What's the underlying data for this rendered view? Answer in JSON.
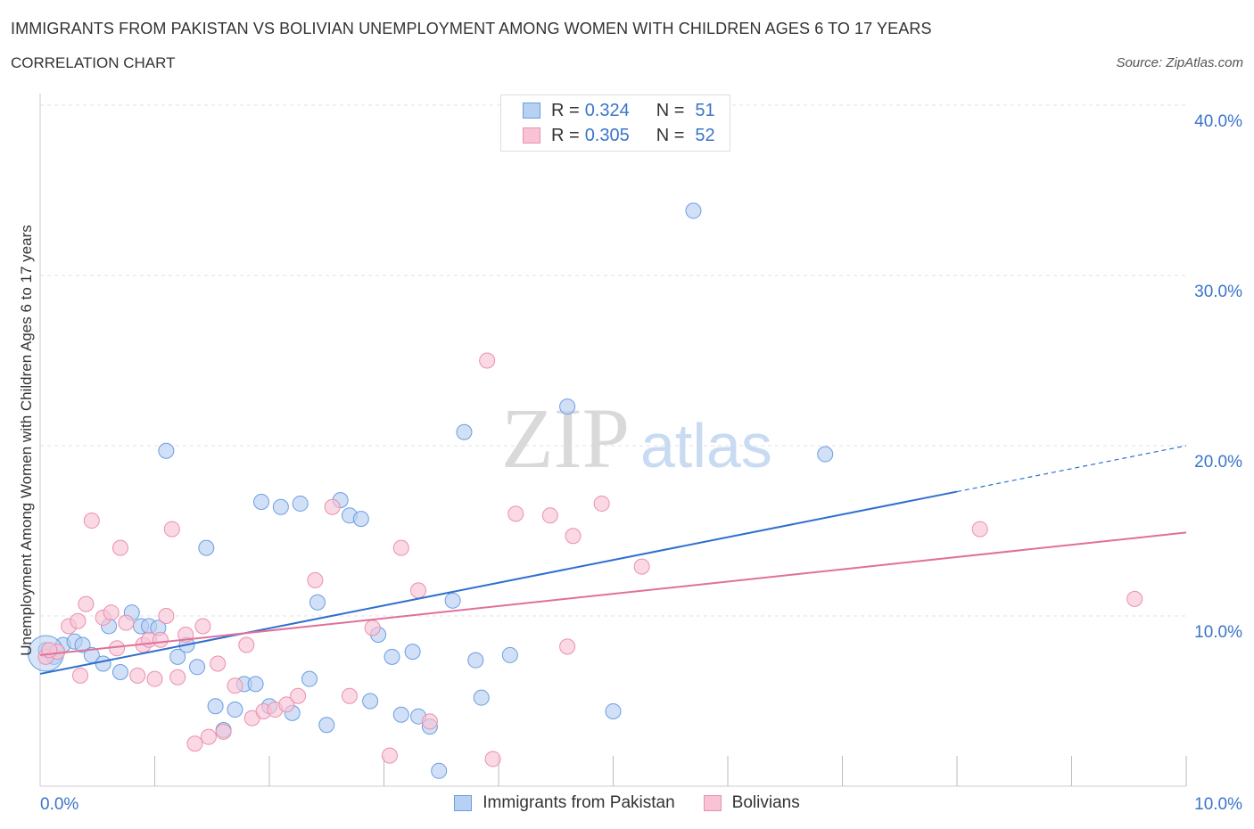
{
  "header": {
    "title": "IMMIGRANTS FROM PAKISTAN VS BOLIVIAN UNEMPLOYMENT AMONG WOMEN WITH CHILDREN AGES 6 TO 17 YEARS",
    "subtitle": "CORRELATION CHART",
    "source": "Source: ZipAtlas.com"
  },
  "watermark": {
    "zip": "ZIP",
    "atlas": "atlas"
  },
  "legend": {
    "r_label": "R =",
    "n_label": "N =",
    "series": [
      {
        "name": "Immigrants from Pakistan",
        "r": "0.324",
        "n": "51",
        "color": "#a9c7ef",
        "stroke": "#6a9ee0"
      },
      {
        "name": "Bolivians",
        "r": "0.305",
        "n": "52",
        "color": "#f7bcd0",
        "stroke": "#ec8fad"
      }
    ]
  },
  "colors": {
    "blue_fill": "#b8d0f2",
    "blue_line": "#2f6fce",
    "pink_fill": "#f8c4d5",
    "pink_line": "#e0709a",
    "axis_text": "#3b74c9",
    "grid": "#e2e2e2"
  },
  "chart_data": {
    "type": "scatter",
    "title": "IMMIGRANTS FROM PAKISTAN VS BOLIVIAN UNEMPLOYMENT AMONG WOMEN WITH CHILDREN AGES 6 TO 17 YEARS",
    "xlabel": "",
    "ylabel": "Unemployment Among Women with Children Ages 6 to 17 years",
    "xlim": [
      0,
      10
    ],
    "ylim": [
      0,
      40
    ],
    "x_tick_labels": [
      "0.0%",
      "10.0%"
    ],
    "y_tick_labels": [
      "10.0%",
      "20.0%",
      "30.0%",
      "40.0%"
    ],
    "y_ticks": [
      10,
      20,
      30,
      40
    ],
    "series": [
      {
        "name": "Immigrants from Pakistan",
        "r": 0.324,
        "n": 51,
        "points": [
          [
            0.05,
            8.0
          ],
          [
            0.2,
            8.3
          ],
          [
            0.3,
            8.5
          ],
          [
            0.37,
            8.3
          ],
          [
            0.45,
            7.7
          ],
          [
            0.55,
            7.2
          ],
          [
            0.6,
            9.4
          ],
          [
            0.7,
            6.7
          ],
          [
            0.8,
            10.2
          ],
          [
            0.88,
            9.4
          ],
          [
            0.95,
            9.4
          ],
          [
            1.03,
            9.3
          ],
          [
            1.1,
            19.7
          ],
          [
            1.2,
            7.6
          ],
          [
            1.28,
            8.3
          ],
          [
            1.37,
            7.0
          ],
          [
            1.45,
            14.0
          ],
          [
            1.53,
            4.7
          ],
          [
            1.6,
            3.3
          ],
          [
            1.7,
            4.5
          ],
          [
            1.78,
            6.0
          ],
          [
            1.88,
            6.0
          ],
          [
            1.93,
            16.7
          ],
          [
            2.0,
            4.7
          ],
          [
            2.1,
            16.4
          ],
          [
            2.2,
            4.3
          ],
          [
            2.27,
            16.6
          ],
          [
            2.35,
            6.3
          ],
          [
            2.42,
            10.8
          ],
          [
            2.5,
            3.6
          ],
          [
            2.62,
            16.8
          ],
          [
            2.7,
            15.9
          ],
          [
            2.8,
            15.7
          ],
          [
            2.88,
            5.0
          ],
          [
            2.95,
            8.9
          ],
          [
            3.07,
            7.6
          ],
          [
            3.15,
            4.2
          ],
          [
            3.25,
            7.9
          ],
          [
            3.3,
            4.1
          ],
          [
            3.4,
            3.5
          ],
          [
            3.48,
            0.9
          ],
          [
            3.6,
            10.9
          ],
          [
            3.7,
            20.8
          ],
          [
            3.8,
            7.4
          ],
          [
            3.85,
            5.2
          ],
          [
            4.1,
            7.7
          ],
          [
            4.6,
            22.3
          ],
          [
            5.0,
            4.4
          ],
          [
            5.7,
            33.8
          ],
          [
            6.85,
            19.5
          ],
          [
            0.12,
            7.6
          ]
        ],
        "trend": {
          "x": [
            0.0,
            8.0
          ],
          "y": [
            6.6,
            17.3
          ],
          "dashed_to": [
            10.0,
            20.0
          ]
        }
      },
      {
        "name": "Bolivians",
        "r": 0.305,
        "n": 52,
        "points": [
          [
            0.05,
            7.6
          ],
          [
            0.15,
            7.9
          ],
          [
            0.25,
            9.4
          ],
          [
            0.33,
            9.7
          ],
          [
            0.35,
            6.5
          ],
          [
            0.4,
            10.7
          ],
          [
            0.45,
            15.6
          ],
          [
            0.55,
            9.9
          ],
          [
            0.62,
            10.2
          ],
          [
            0.67,
            8.1
          ],
          [
            0.7,
            14.0
          ],
          [
            0.75,
            9.6
          ],
          [
            0.85,
            6.5
          ],
          [
            0.9,
            8.3
          ],
          [
            0.95,
            8.6
          ],
          [
            1.0,
            6.3
          ],
          [
            1.05,
            8.6
          ],
          [
            1.1,
            10.0
          ],
          [
            1.15,
            15.1
          ],
          [
            1.2,
            6.4
          ],
          [
            1.27,
            8.9
          ],
          [
            1.35,
            2.5
          ],
          [
            1.42,
            9.4
          ],
          [
            1.47,
            2.9
          ],
          [
            1.55,
            7.2
          ],
          [
            1.6,
            3.2
          ],
          [
            1.7,
            5.9
          ],
          [
            1.8,
            8.3
          ],
          [
            1.85,
            4.0
          ],
          [
            1.95,
            4.4
          ],
          [
            2.05,
            4.5
          ],
          [
            2.15,
            4.8
          ],
          [
            2.25,
            5.3
          ],
          [
            2.4,
            12.1
          ],
          [
            2.55,
            16.4
          ],
          [
            2.7,
            5.3
          ],
          [
            2.9,
            9.3
          ],
          [
            3.05,
            1.8
          ],
          [
            3.15,
            14.0
          ],
          [
            3.3,
            11.5
          ],
          [
            3.4,
            3.8
          ],
          [
            3.9,
            25.0
          ],
          [
            3.95,
            1.6
          ],
          [
            4.15,
            16.0
          ],
          [
            4.45,
            15.9
          ],
          [
            4.6,
            8.2
          ],
          [
            4.65,
            14.7
          ],
          [
            4.9,
            16.6
          ],
          [
            5.25,
            12.9
          ],
          [
            8.2,
            15.1
          ],
          [
            9.55,
            11.0
          ],
          [
            0.08,
            8.0
          ]
        ],
        "trend": {
          "x": [
            0.0,
            10.0
          ],
          "y": [
            7.7,
            14.9
          ]
        }
      }
    ]
  }
}
